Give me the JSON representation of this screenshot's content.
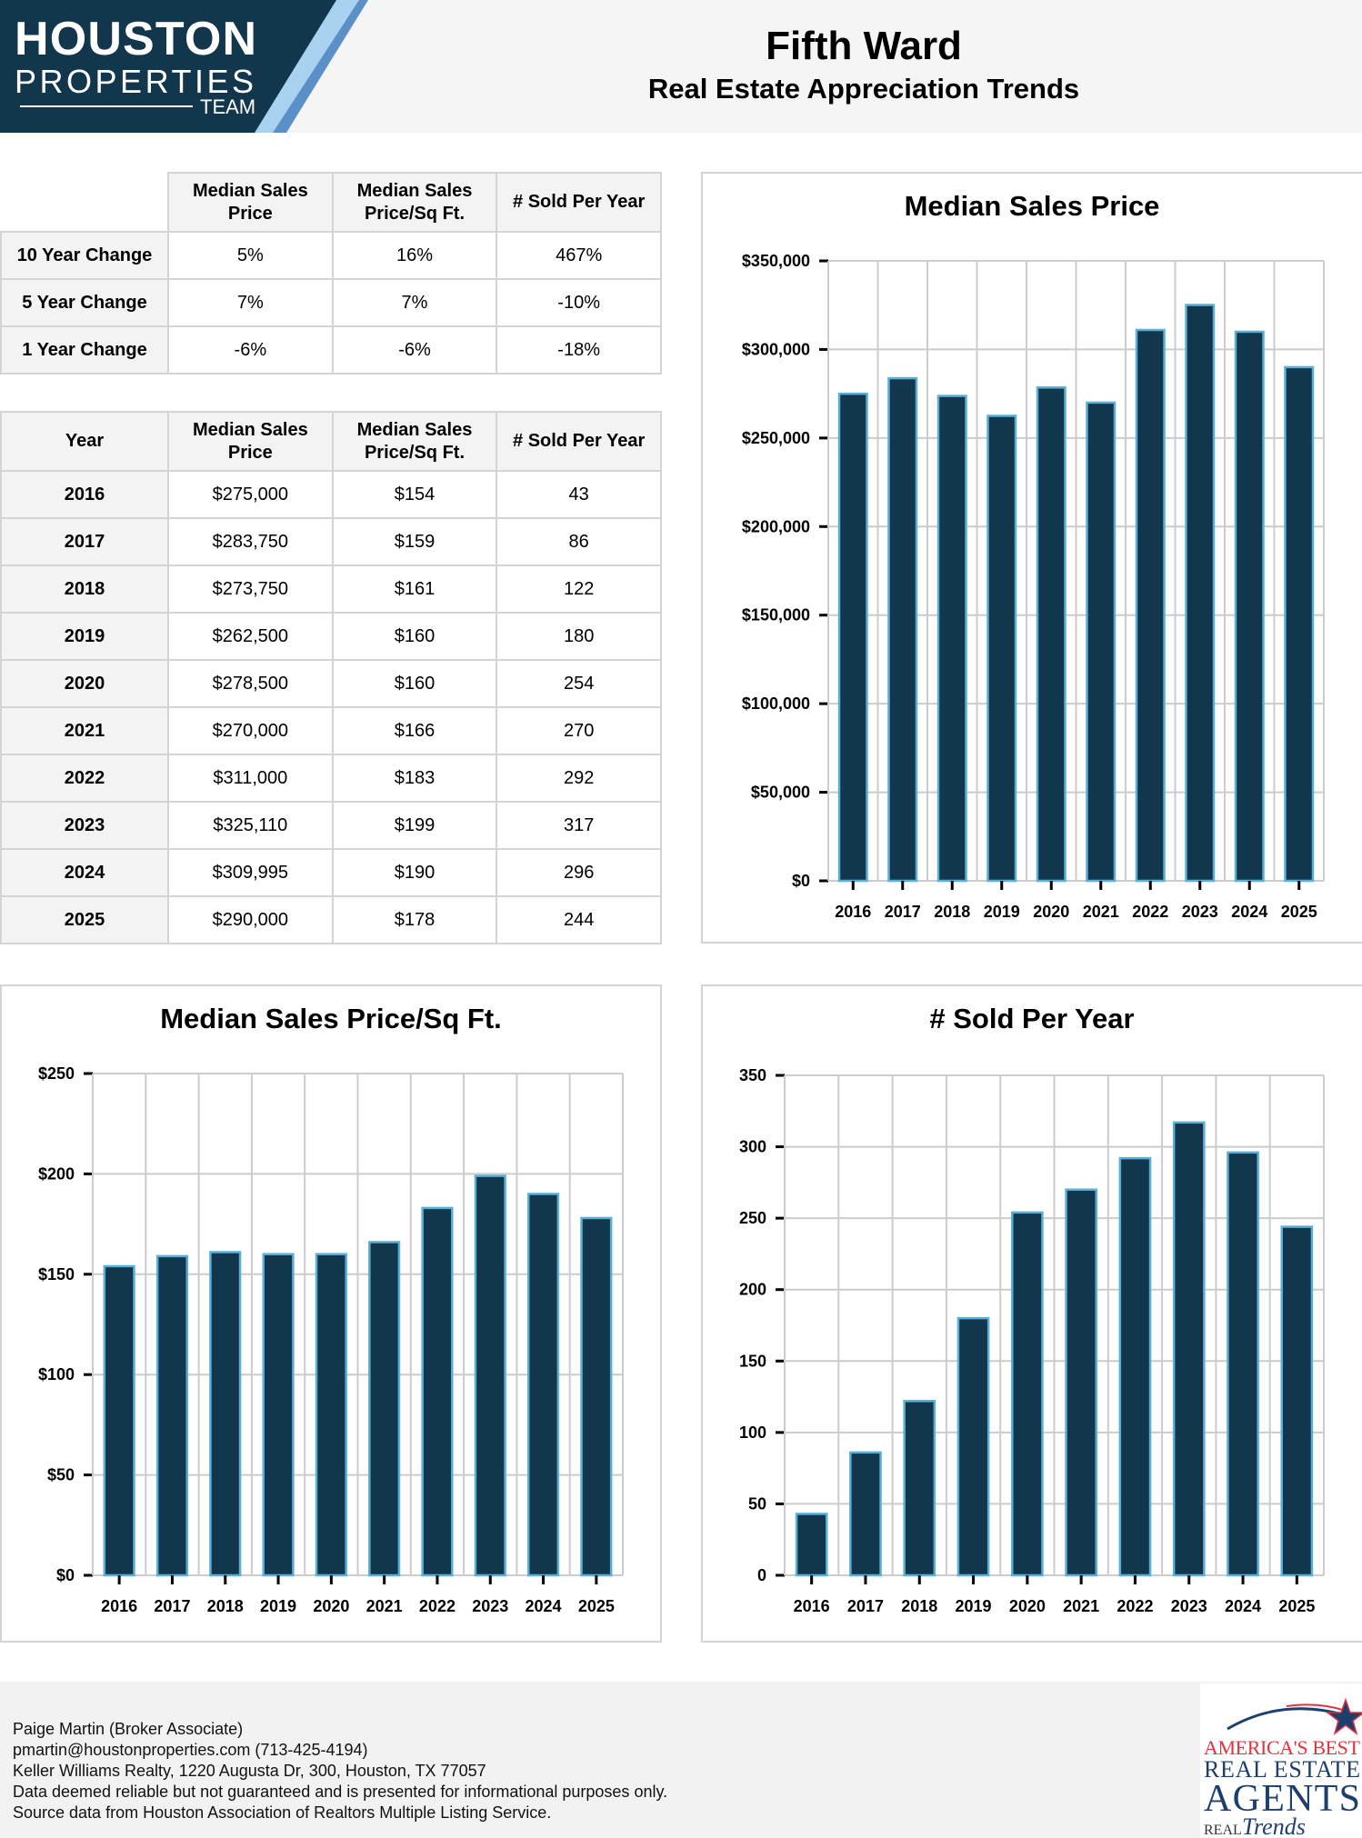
{
  "header": {
    "logo_text": [
      "HOUSTON",
      "PROPERTIES",
      "TEAM"
    ],
    "title": "Fifth Ward",
    "subtitle": "Real Estate Appreciation Trends"
  },
  "change_table": {
    "headers": [
      "Median Sales Price",
      "Median Sales Price/Sq Ft.",
      "# Sold Per Year"
    ],
    "rows": [
      {
        "label": "10 Year Change",
        "values": [
          "5%",
          "16%",
          "467%"
        ]
      },
      {
        "label": "5 Year Change",
        "values": [
          "7%",
          "7%",
          "-10%"
        ]
      },
      {
        "label": "1 Year Change",
        "values": [
          "-6%",
          "-6%",
          "-18%"
        ]
      }
    ]
  },
  "yearly_table": {
    "headers": [
      "Year",
      "Median Sales Price",
      "Median Sales Price/Sq Ft.",
      "# Sold Per Year"
    ],
    "rows": [
      [
        "2016",
        "$275,000",
        "$154",
        "43"
      ],
      [
        "2017",
        "$283,750",
        "$159",
        "86"
      ],
      [
        "2018",
        "$273,750",
        "$161",
        "122"
      ],
      [
        "2019",
        "$262,500",
        "$160",
        "180"
      ],
      [
        "2020",
        "$278,500",
        "$160",
        "254"
      ],
      [
        "2021",
        "$270,000",
        "$166",
        "270"
      ],
      [
        "2022",
        "$311,000",
        "$183",
        "292"
      ],
      [
        "2023",
        "$325,110",
        "$199",
        "317"
      ],
      [
        "2024",
        "$309,995",
        "$190",
        "296"
      ],
      [
        "2025",
        "$290,000",
        "$178",
        "244"
      ]
    ]
  },
  "colors": {
    "bar_fill": "#12374d",
    "bar_outline": "#5bafd6",
    "grid": "#cccccc"
  },
  "chart_data": [
    {
      "type": "bar",
      "title": "Median Sales Price",
      "categories": [
        "2016",
        "2017",
        "2018",
        "2019",
        "2020",
        "2021",
        "2022",
        "2023",
        "2024",
        "2025"
      ],
      "values": [
        275000,
        283750,
        273750,
        262500,
        278500,
        270000,
        311000,
        325110,
        309995,
        290000
      ],
      "ylim": [
        0,
        350000
      ],
      "yticks": [
        0,
        50000,
        100000,
        150000,
        200000,
        250000,
        300000,
        350000
      ],
      "ytick_labels": [
        "$0",
        "$50,000",
        "$100,000",
        "$150,000",
        "$200,000",
        "$250,000",
        "$300,000",
        "$350,000"
      ],
      "grid": true
    },
    {
      "type": "bar",
      "title": "Median Sales Price/Sq Ft.",
      "categories": [
        "2016",
        "2017",
        "2018",
        "2019",
        "2020",
        "2021",
        "2022",
        "2023",
        "2024",
        "2025"
      ],
      "values": [
        154,
        159,
        161,
        160,
        160,
        166,
        183,
        199,
        190,
        178
      ],
      "ylim": [
        0,
        250
      ],
      "yticks": [
        0,
        50,
        100,
        150,
        200,
        250
      ],
      "ytick_labels": [
        "$0",
        "$50",
        "$100",
        "$150",
        "$200",
        "$250"
      ],
      "grid": true
    },
    {
      "type": "bar",
      "title": "# Sold Per Year",
      "categories": [
        "2016",
        "2017",
        "2018",
        "2019",
        "2020",
        "2021",
        "2022",
        "2023",
        "2024",
        "2025"
      ],
      "values": [
        43,
        86,
        122,
        180,
        254,
        270,
        292,
        317,
        296,
        244
      ],
      "ylim": [
        0,
        350
      ],
      "yticks": [
        0,
        50,
        100,
        150,
        200,
        250,
        300,
        350
      ],
      "ytick_labels": [
        "0",
        "50",
        "100",
        "150",
        "200",
        "250",
        "300",
        "350"
      ],
      "grid": true
    }
  ],
  "footer": {
    "lines": [
      "Paige Martin (Broker Associate)",
      "pmartin@houstonproperties.com (713-425-4194)",
      "Keller Williams Realty, 1220 Augusta Dr, 300, Houston, TX 77057",
      "Data deemed reliable but not guaranteed and is presented for informational purposes only.",
      "Source data from Houston Association of Realtors Multiple Listing Service."
    ],
    "award_logo_text": [
      "AMERICA'S BEST",
      "REAL ESTATE",
      "AGENTS",
      "REAL Trends"
    ]
  }
}
